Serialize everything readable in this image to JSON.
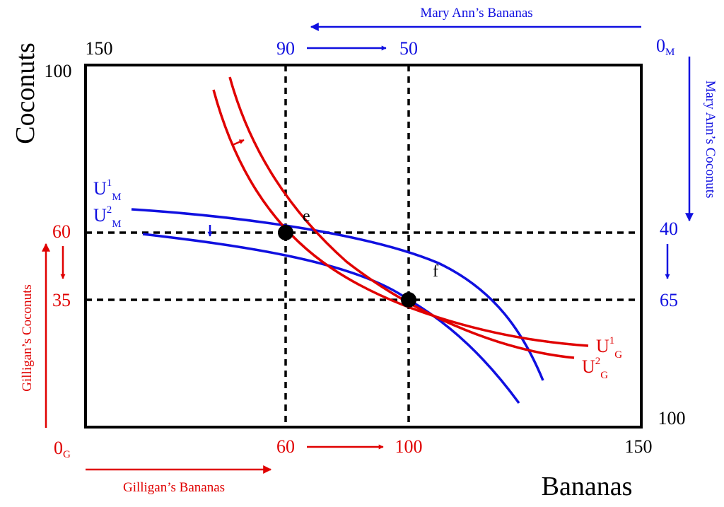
{
  "colors": {
    "gilligan": "#e00000",
    "mary_ann": "#1010e0",
    "box": "#000000"
  },
  "axes": {
    "y_title": "Coconuts",
    "x_title": "Bananas",
    "top_left_corner": "150",
    "top_left_y": "100",
    "bottom_right_x": "150",
    "bottom_right_y": "100"
  },
  "gilligan": {
    "origin_main": "0",
    "origin_sub": "G",
    "bananas_label": "Gilligan’s Bananas",
    "coconuts_label": "Gilligan’s Coconuts",
    "coconut_ticks": [
      "60",
      "35"
    ],
    "banana_ticks": [
      "60",
      "100"
    ],
    "curve1_main": "U",
    "curve1_sup": "1",
    "curve1_sub": "G",
    "curve2_main": "U",
    "curve2_sup": "2",
    "curve2_sub": "G"
  },
  "mary_ann": {
    "origin_main": "0",
    "origin_sub": "M",
    "bananas_label": "Mary Ann’s Bananas",
    "coconuts_label": "Mary Ann’s Coconuts",
    "coconut_ticks": [
      "40",
      "65"
    ],
    "banana_ticks": [
      "90",
      "50"
    ],
    "curve1_main": "U",
    "curve1_sup": "1",
    "curve1_sub": "M",
    "curve2_main": "U",
    "curve2_sup": "2",
    "curve2_sub": "M"
  },
  "points": {
    "e": "e",
    "f": "f"
  }
}
